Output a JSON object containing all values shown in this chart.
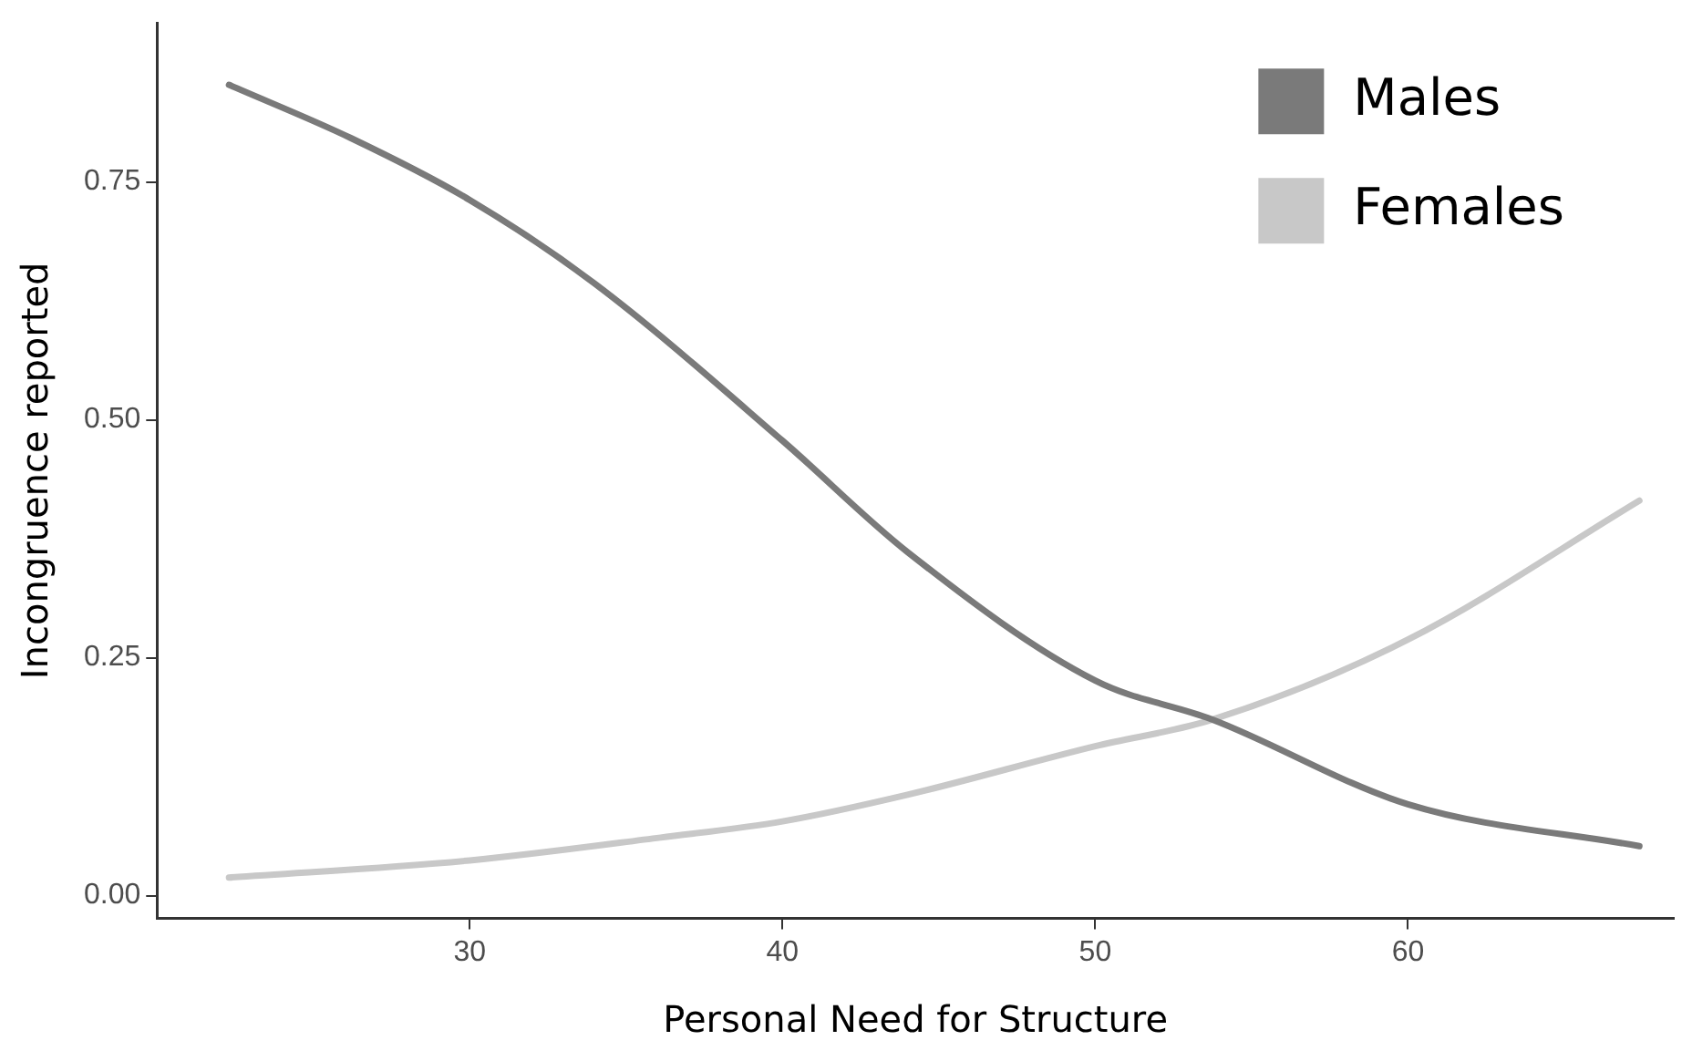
{
  "chart_data": {
    "type": "line",
    "xlabel": "Personal Need for Structure",
    "ylabel": "Incongruence reported",
    "xlim": [
      20,
      68.5
    ],
    "ylim": [
      -0.024,
      0.917
    ],
    "xticks": [
      30,
      40,
      50,
      60
    ],
    "yticks": [
      {
        "value": 0,
        "label": "0.00"
      },
      {
        "value": 0.25,
        "label": "0.25"
      },
      {
        "value": 0.5,
        "label": "0.50"
      },
      {
        "value": 0.75,
        "label": "0.75"
      }
    ],
    "grid": false,
    "legend": "top right",
    "marker": "none",
    "line_style": "solid",
    "series": [
      {
        "name": "Males",
        "color": "#7a7a7a",
        "x": [
          22.3,
          26.2,
          30,
          34,
          40,
          44,
          50,
          53.75,
          60,
          67.4
        ],
        "values": [
          0.852,
          0.796,
          0.731,
          0.643,
          0.478,
          0.361,
          0.226,
          0.185,
          0.096,
          0.052
        ]
      },
      {
        "name": "Females",
        "color": "#c8c8c8",
        "x": [
          22.3,
          30,
          36.1,
          40,
          44,
          50,
          53.75,
          60,
          67.4
        ],
        "values": [
          0.019,
          0.037,
          0.061,
          0.078,
          0.106,
          0.157,
          0.185,
          0.269,
          0.415
        ]
      }
    ]
  }
}
